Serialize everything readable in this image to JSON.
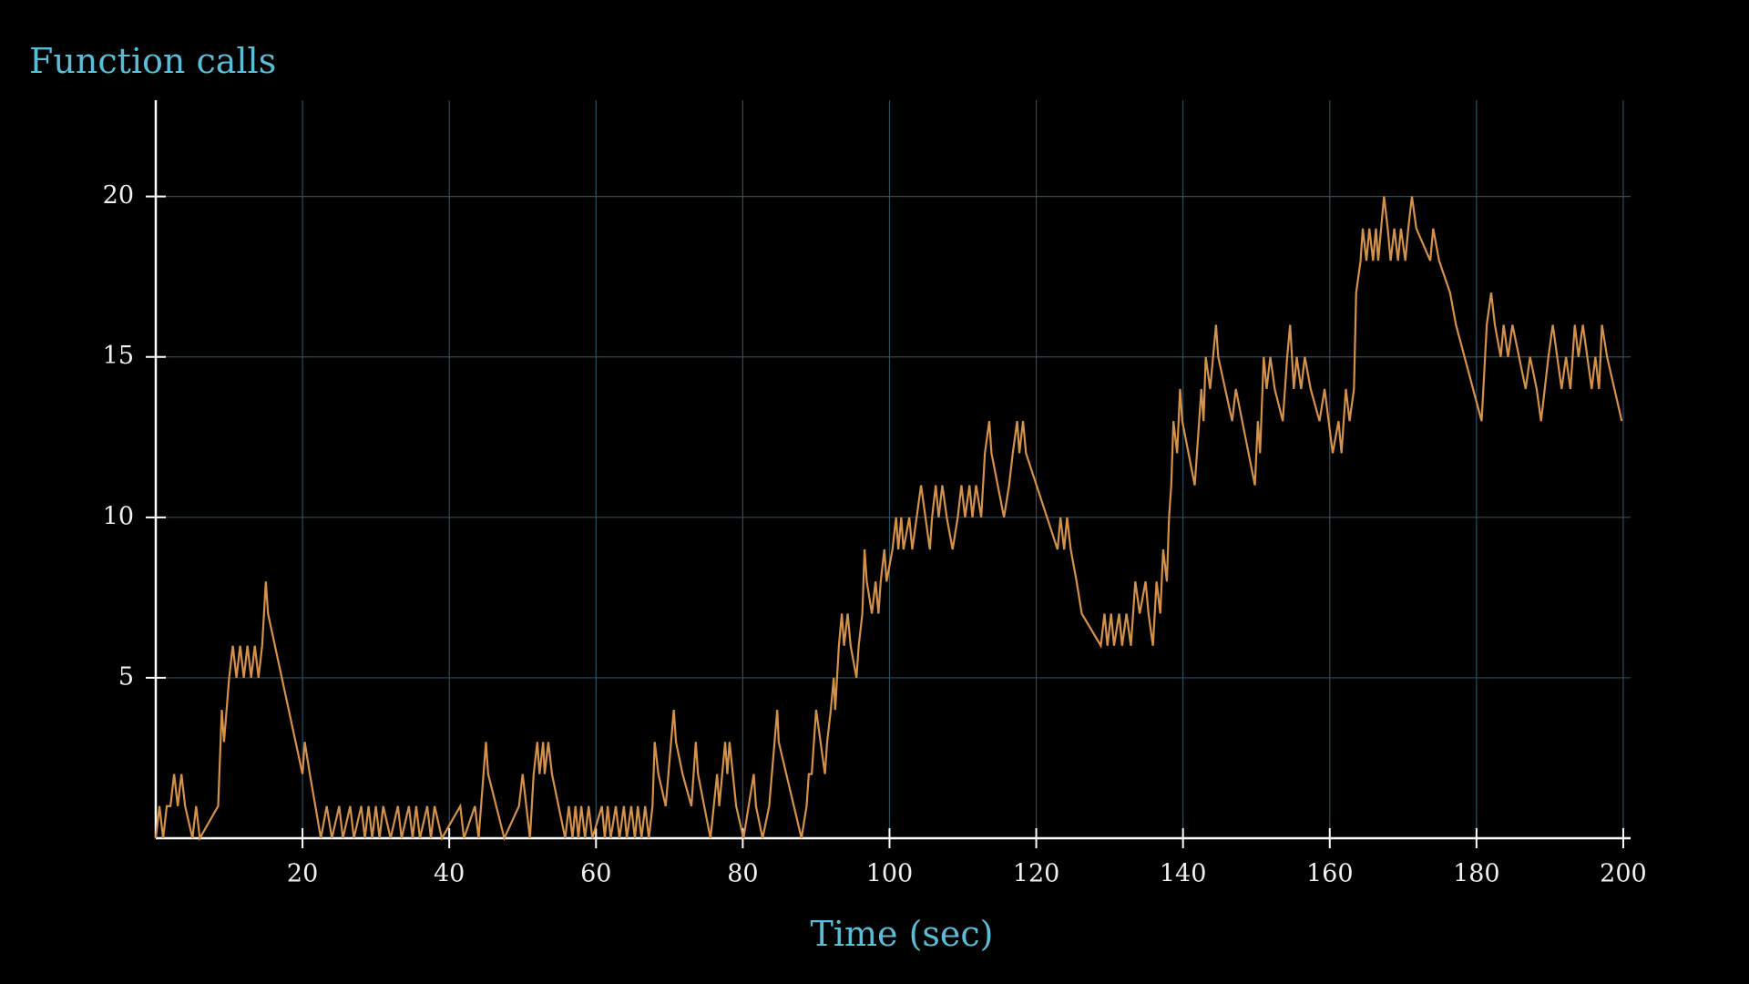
{
  "chart_data": {
    "type": "line",
    "title": "Function calls",
    "xlabel": "Time (sec)",
    "color": "#d4914a",
    "grid": true,
    "xlim": [
      0,
      201
    ],
    "ylim": [
      0,
      23
    ],
    "xticks": [
      20,
      40,
      60,
      80,
      100,
      120,
      140,
      160,
      180,
      200
    ],
    "yticks": [
      5,
      10,
      15,
      20
    ],
    "x": [
      0,
      0.5,
      1,
      1.5,
      2,
      2.5,
      3,
      3.5,
      4,
      5,
      5.5,
      6,
      8.5,
      9,
      9.3,
      10,
      10.5,
      11,
      11.5,
      12,
      12.5,
      13,
      13.5,
      14,
      14.5,
      15,
      15.3,
      20,
      20.3,
      21,
      22.5,
      23.3,
      24,
      25,
      25.5,
      26.5,
      27,
      28,
      28.5,
      29,
      29.5,
      30,
      30.5,
      31,
      32,
      33,
      33.5,
      34.5,
      35,
      35.5,
      36,
      37,
      37.5,
      38,
      39,
      41.5,
      42,
      43.5,
      44,
      45,
      45.3,
      47.5,
      49.5,
      50,
      50.5,
      51,
      51.5,
      52,
      52.3,
      52.8,
      53,
      53.5,
      54,
      55.8,
      56.3,
      56.8,
      57.2,
      57.6,
      58,
      58.5,
      59,
      59.5,
      60.8,
      61.2,
      61.6,
      62,
      62.7,
      63.2,
      63.8,
      64.2,
      64.8,
      65.3,
      65.7,
      66.2,
      66.7,
      67.2,
      67.7,
      68,
      68.5,
      69.5,
      70.6,
      70.9,
      71.8,
      73,
      73.6,
      73.9,
      75.6,
      76.5,
      76.8,
      77.6,
      77.9,
      78.2,
      79.1,
      80.1,
      81.5,
      81.8,
      82.7,
      83.6,
      84.7,
      84.9,
      88,
      88.7,
      89,
      89.4,
      89.7,
      90,
      90.6,
      91.2,
      91.5,
      92,
      92.4,
      92.6,
      93.1,
      93.5,
      93.8,
      94.3,
      94.7,
      95.5,
      95.8,
      96.3,
      96.6,
      96.9,
      97.6,
      98.1,
      98.5,
      98.8,
      99.3,
      99.6,
      100.4,
      100.9,
      101.2,
      101.6,
      101.9,
      102.7,
      103.1,
      103.7,
      104.3,
      104.9,
      105.5,
      105.8,
      106.3,
      106.7,
      107.2,
      107.8,
      108.6,
      109.3,
      109.8,
      110.3,
      110.9,
      111.3,
      111.8,
      112.5,
      113,
      113.6,
      113.9,
      115.6,
      116.3,
      116.8,
      117.4,
      117.7,
      118.2,
      118.6,
      122.9,
      123.3,
      123.8,
      124.2,
      124.7,
      125.5,
      126.2,
      128.8,
      129.3,
      129.7,
      130.2,
      130.6,
      131.3,
      131.7,
      132.3,
      132.9,
      133.5,
      134.1,
      134.9,
      135.3,
      135.9,
      136.4,
      136.9,
      137.3,
      137.8,
      138.1,
      138.4,
      138.7,
      139.2,
      139.6,
      139.9,
      141.6,
      142.2,
      142.5,
      142.8,
      143.1,
      143.7,
      144.5,
      144.8,
      146.7,
      147.2,
      149.8,
      150.2,
      150.5,
      151,
      151.4,
      151.9,
      152.5,
      153.6,
      154.2,
      154.6,
      155.1,
      155.5,
      156.1,
      156.6,
      157.4,
      158.6,
      159.3,
      160.4,
      161.2,
      161.6,
      162.2,
      162.7,
      163.3,
      163.6,
      164.2,
      164.5,
      165,
      165.4,
      165.9,
      166.3,
      166.6,
      167.4,
      167.9,
      168.3,
      168.8,
      169.3,
      169.7,
      170.3,
      170.7,
      171.2,
      171.8,
      173.7,
      174.1,
      174.9,
      176.4,
      177.2,
      180.7,
      181.4,
      182,
      182.5,
      183.3,
      183.7,
      184.3,
      184.9,
      185.8,
      186.7,
      187.3,
      188.2,
      188.8,
      189.8,
      190.4,
      191,
      191.6,
      192.2,
      192.8,
      193.4,
      193.9,
      194.5,
      195.1,
      195.7,
      196.2,
      196.7,
      197.1,
      197.8,
      199.8
    ],
    "values": [
      0,
      1,
      0,
      1,
      1,
      2,
      1,
      2,
      1,
      0,
      1,
      0,
      1,
      4,
      3,
      5,
      6,
      5,
      6,
      5,
      6,
      5,
      6,
      5,
      6,
      8,
      7,
      2,
      3,
      2,
      0,
      1,
      0,
      1,
      0,
      1,
      0,
      1,
      0,
      1,
      0,
      1,
      0,
      1,
      0,
      1,
      0,
      1,
      0,
      1,
      0,
      1,
      0,
      1,
      0,
      1,
      0,
      1,
      0,
      3,
      2,
      0,
      1,
      2,
      1,
      0,
      2,
      3,
      2,
      3,
      2,
      3,
      2,
      0,
      1,
      0,
      1,
      0,
      1,
      0,
      1,
      0,
      1,
      0,
      1,
      0,
      1,
      0,
      1,
      0,
      1,
      0,
      1,
      0,
      1,
      0,
      1,
      3,
      2,
      1,
      4,
      3,
      2,
      1,
      3,
      2,
      0,
      2,
      1,
      3,
      2,
      3,
      1,
      0,
      2,
      1,
      0,
      1,
      4,
      3,
      0,
      1,
      2,
      2,
      3,
      4,
      3,
      2,
      3,
      4,
      5,
      4,
      6,
      7,
      6,
      7,
      6,
      5,
      6,
      7,
      9,
      8,
      7,
      8,
      7,
      8,
      9,
      8,
      9,
      10,
      9,
      10,
      9,
      10,
      9,
      10,
      11,
      10,
      9,
      10,
      11,
      10,
      11,
      10,
      9,
      10,
      11,
      10,
      11,
      10,
      11,
      10,
      12,
      13,
      12,
      10,
      11,
      12,
      13,
      12,
      13,
      12,
      9,
      10,
      9,
      10,
      9,
      8,
      7,
      6,
      7,
      6,
      7,
      6,
      7,
      6,
      7,
      6,
      8,
      7,
      8,
      7,
      6,
      8,
      7,
      9,
      8,
      10,
      11,
      13,
      12,
      14,
      13,
      11,
      13,
      14,
      13,
      15,
      14,
      16,
      15,
      13,
      14,
      11,
      13,
      12,
      15,
      14,
      15,
      14,
      13,
      15,
      16,
      14,
      15,
      14,
      15,
      14,
      13,
      14,
      12,
      13,
      12,
      14,
      13,
      14,
      17,
      18,
      19,
      18,
      19,
      18,
      19,
      18,
      20,
      19,
      18,
      19,
      18,
      19,
      18,
      19,
      20,
      19,
      18,
      19,
      18,
      17,
      16,
      13,
      16,
      17,
      16,
      15,
      16,
      15,
      16,
      15,
      14,
      15,
      14,
      13,
      15,
      16,
      15,
      14,
      15,
      14,
      16,
      15,
      16,
      15,
      14,
      15,
      14,
      16,
      15,
      13
    ]
  }
}
